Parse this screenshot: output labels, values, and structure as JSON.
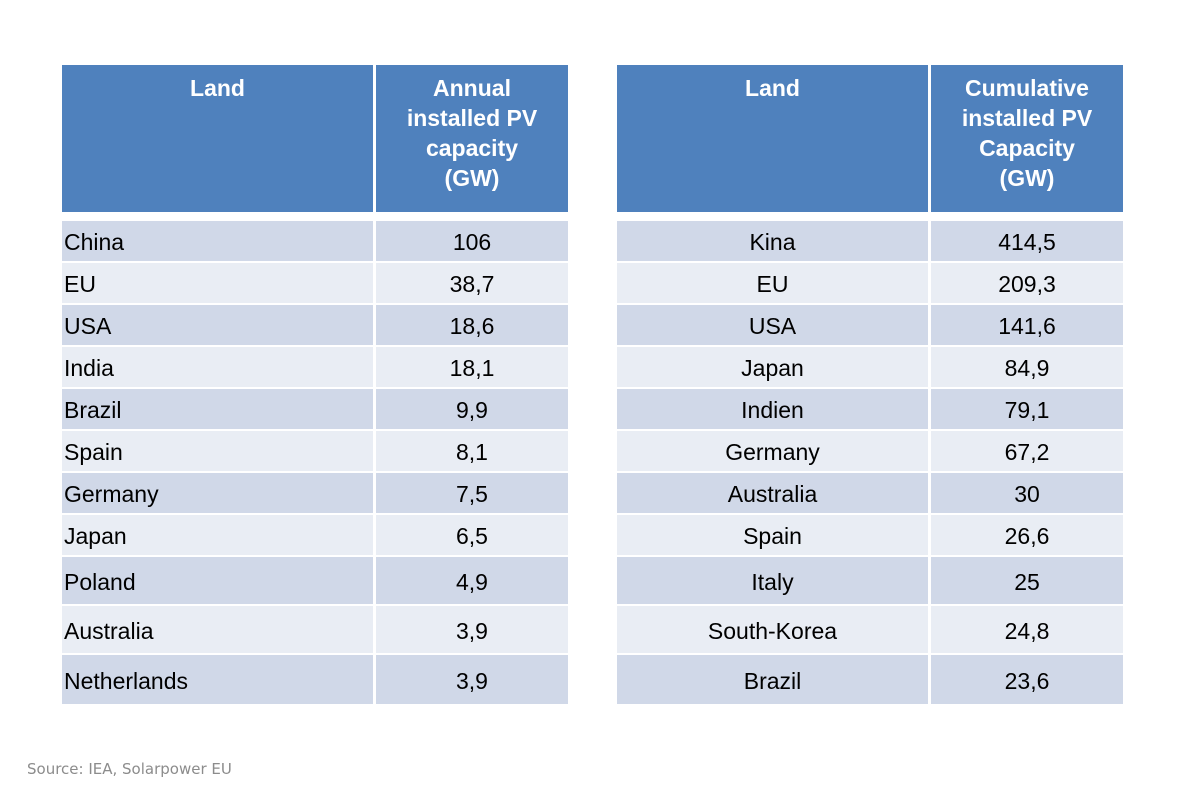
{
  "annual": {
    "headers": [
      "Land",
      "Annual installed PV capacity (GW)"
    ],
    "rows": [
      {
        "country": "China",
        "value": "106"
      },
      {
        "country": "EU",
        "value": "38,7"
      },
      {
        "country": "USA",
        "value": "18,6"
      },
      {
        "country": "India",
        "value": "18,1"
      },
      {
        "country": "Brazil",
        "value": "9,9"
      },
      {
        "country": "Spain",
        "value": "8,1"
      },
      {
        "country": "Germany",
        "value": "7,5"
      },
      {
        "country": "Japan",
        "value": "6,5"
      },
      {
        "country": "Poland",
        "value": "4,9"
      },
      {
        "country": "Australia",
        "value": "3,9"
      },
      {
        "country": "Netherlands",
        "value": "3,9"
      }
    ]
  },
  "cumulative": {
    "headers": [
      "Land",
      "Cumulative installed PV Capacity (GW)"
    ],
    "rows": [
      {
        "country": "Kina",
        "value": "414,5"
      },
      {
        "country": "EU",
        "value": "209,3"
      },
      {
        "country": "USA",
        "value": "141,6"
      },
      {
        "country": "Japan",
        "value": "84,9"
      },
      {
        "country": "Indien",
        "value": "79,1"
      },
      {
        "country": "Germany",
        "value": "67,2"
      },
      {
        "country": "Australia",
        "value": "30"
      },
      {
        "country": "Spain",
        "value": "26,6"
      },
      {
        "country": "Italy",
        "value": "25"
      },
      {
        "country": "South-Korea",
        "value": "24,8"
      },
      {
        "country": "Brazil",
        "value": "23,6"
      }
    ]
  },
  "source": "Source: IEA, Solarpower EU",
  "colors": {
    "header_bg": "#4f81bd",
    "row_dark": "#d0d8e8",
    "row_light": "#e9edf4"
  }
}
